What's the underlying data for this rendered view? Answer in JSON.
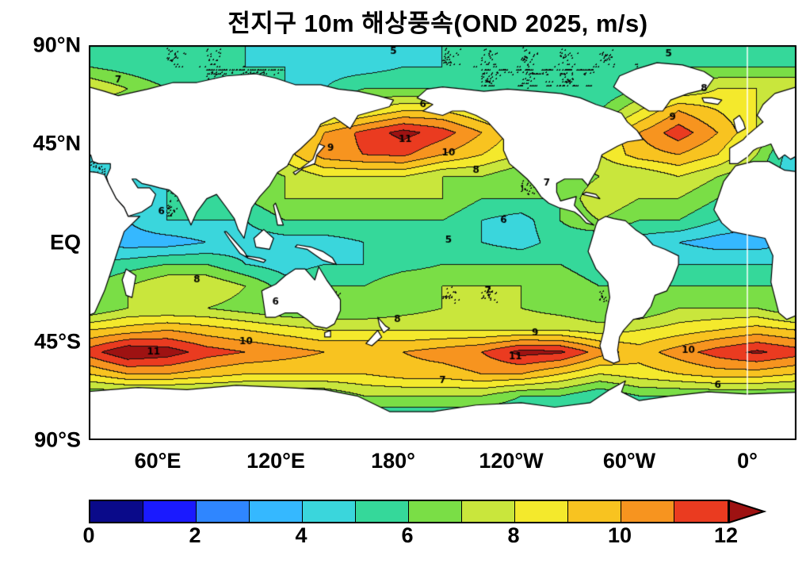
{
  "title": "전지구 10m 해상풍속(OND 2025, m/s)",
  "axes": {
    "y": [
      "90°N",
      "45°N",
      "EQ",
      "45°S",
      "90°S"
    ],
    "x": [
      "60°E",
      "120°E",
      "180°",
      "120°W",
      "60°W",
      "0°"
    ]
  },
  "colorbar": {
    "ticks": [
      "0",
      "2",
      "4",
      "6",
      "8",
      "10",
      "12"
    ],
    "min": 0,
    "max": 12,
    "unit": "m/s",
    "colors": [
      "#0a0a8a",
      "#1a1aff",
      "#2f86ff",
      "#35b8ff",
      "#3ad6dc",
      "#35d89a",
      "#7ade46",
      "#c9e63c",
      "#f4e92c",
      "#f8c320",
      "#f7941f",
      "#ea3b20",
      "#9e1212"
    ]
  },
  "chart_data": {
    "type": "heatmap",
    "title": "전지구 10m 해상풍속(OND 2025, m/s)",
    "variable": "10m ocean-surface wind speed",
    "season": "OND 2025",
    "units": "m/s",
    "projection": "equirectangular, longitude 25E to 25E (wrapped), latitude 90N to 90S",
    "xlabel_ticks": [
      "60°E",
      "120°E",
      "180°",
      "120°W",
      "60°W",
      "0°"
    ],
    "ylabel_ticks": [
      "90°N",
      "45°N",
      "EQ",
      "45°S",
      "90°S"
    ],
    "contour_levels": [
      1,
      2,
      3,
      4,
      5,
      6,
      7,
      8,
      9,
      10,
      11,
      12
    ],
    "legend_position": "bottom colorbar 0-12 m/s with overflow arrow",
    "grid": {
      "lats": [
        90,
        80,
        70,
        60,
        50,
        40,
        30,
        20,
        10,
        0,
        -10,
        -20,
        -30,
        -40,
        -50,
        -60,
        -70,
        -80,
        -90
      ],
      "lons_plot": [
        25,
        45,
        65,
        85,
        105,
        125,
        145,
        165,
        185,
        205,
        225,
        245,
        265,
        285,
        305,
        325,
        345,
        365,
        385
      ],
      "values": [
        [
          5,
          5,
          5,
          5,
          5,
          4.5,
          4.5,
          4.5,
          4.5,
          5,
          5,
          5,
          5,
          5,
          5,
          5,
          5,
          5,
          5
        ],
        [
          6,
          5.5,
          5,
          5,
          5,
          5,
          4.5,
          4.5,
          5,
          5,
          5,
          5,
          5,
          5,
          5,
          6,
          6,
          6,
          6
        ],
        [
          8,
          7,
          6,
          5,
          5,
          5,
          5,
          6,
          6,
          6,
          5,
          5,
          5,
          5,
          6,
          7,
          8,
          8,
          8
        ],
        [
          6,
          6,
          5,
          5,
          5,
          6,
          7,
          8,
          9,
          9,
          8,
          7,
          6,
          6,
          8,
          10,
          9,
          8,
          6
        ],
        [
          5,
          5,
          5,
          5.5,
          6.5,
          8,
          10,
          11.3,
          12.4,
          11.5,
          10,
          8.5,
          7,
          8,
          10,
          11.6,
          10,
          8,
          5
        ],
        [
          4,
          4,
          4.5,
          5,
          6,
          8.5,
          10.5,
          11,
          11.2,
          10,
          9,
          8,
          7,
          8,
          9.5,
          10,
          9,
          7,
          4
        ],
        [
          4,
          4,
          5,
          5,
          6,
          7,
          8,
          8,
          8,
          7,
          7,
          6,
          6,
          7,
          7,
          8,
          7,
          6,
          4
        ],
        [
          5,
          5,
          5,
          5,
          6,
          7,
          7,
          7,
          7,
          7,
          6,
          6,
          6,
          8,
          7,
          7,
          6,
          5,
          5
        ],
        [
          4,
          4,
          5,
          5,
          5,
          6,
          6,
          6,
          6,
          6,
          5,
          4.5,
          6,
          7,
          6,
          6,
          5,
          4,
          4
        ],
        [
          4,
          3.5,
          3.5,
          4,
          4.5,
          4.5,
          4.5,
          5,
          5,
          5,
          5,
          4.5,
          5.5,
          5,
          4.5,
          4,
          3.5,
          3.5,
          4
        ],
        [
          5,
          5.5,
          6,
          6,
          5,
          4.5,
          5,
          5,
          5.5,
          6,
          6,
          6,
          6,
          5,
          5,
          5,
          5,
          5,
          5
        ],
        [
          6,
          7,
          8,
          8,
          7,
          5.5,
          6,
          6,
          7,
          7,
          7,
          7,
          7,
          6,
          6,
          6,
          6,
          6,
          6
        ],
        [
          6,
          7,
          7,
          7,
          6.5,
          6,
          6,
          6,
          6.5,
          7,
          7,
          7,
          6.5,
          6,
          6,
          7,
          7,
          7,
          6
        ],
        [
          9,
          9.5,
          10,
          9.5,
          9,
          8.5,
          8,
          8,
          8,
          8,
          8,
          8,
          8,
          7.5,
          8,
          8.5,
          9,
          9.5,
          9
        ],
        [
          11.5,
          13,
          12.6,
          11.5,
          11,
          10.5,
          10,
          10,
          10,
          10.5,
          11,
          12.4,
          12.2,
          10.5,
          9.5,
          10.5,
          11.5,
          12.2,
          11.5
        ],
        [
          9,
          10,
          10,
          9.5,
          9,
          9,
          9,
          9,
          9.5,
          9.5,
          10,
          10,
          9,
          8,
          8.5,
          9,
          9.5,
          9.5,
          9
        ],
        [
          6,
          6,
          6,
          6,
          6,
          6,
          6,
          7,
          7,
          7,
          7,
          6,
          6,
          5,
          6,
          6,
          6,
          6,
          6
        ],
        [
          5,
          5,
          5,
          5,
          5,
          5,
          5,
          5,
          5,
          5,
          5,
          5,
          5,
          5,
          5,
          5,
          5,
          5,
          5
        ],
        [
          5,
          5,
          5,
          5,
          5,
          5,
          5,
          5,
          5,
          5,
          5,
          5,
          5,
          5,
          5,
          5,
          5,
          5,
          5
        ]
      ]
    },
    "contour_labels": [
      {
        "v": 5,
        "lon": 180,
        "lat": 87
      },
      {
        "v": 5,
        "lon": 320,
        "lat": 86
      },
      {
        "v": 7,
        "lon": 40,
        "lat": 74
      },
      {
        "v": 8,
        "lon": 338,
        "lat": 70
      },
      {
        "v": 6,
        "lon": 195,
        "lat": 63
      },
      {
        "v": 9,
        "lon": 322,
        "lat": 57
      },
      {
        "v": 11,
        "lon": 186,
        "lat": 47
      },
      {
        "v": 10,
        "lon": 208,
        "lat": 41
      },
      {
        "v": 9,
        "lon": 148,
        "lat": 43
      },
      {
        "v": 8,
        "lon": 222,
        "lat": 33
      },
      {
        "v": 7,
        "lon": 258,
        "lat": 27
      },
      {
        "v": 6,
        "lon": 62,
        "lat": 14
      },
      {
        "v": 5,
        "lon": 208,
        "lat": 1
      },
      {
        "v": 6,
        "lon": 236,
        "lat": 10
      },
      {
        "v": 8,
        "lon": 80,
        "lat": -17
      },
      {
        "v": 7,
        "lon": 228,
        "lat": -22
      },
      {
        "v": 6,
        "lon": 120,
        "lat": -27
      },
      {
        "v": 8,
        "lon": 182,
        "lat": -35
      },
      {
        "v": 9,
        "lon": 252,
        "lat": -41
      },
      {
        "v": 10,
        "lon": 105,
        "lat": -45
      },
      {
        "v": 11,
        "lon": 58,
        "lat": -50
      },
      {
        "v": 11,
        "lon": 242,
        "lat": -52
      },
      {
        "v": 10,
        "lon": 330,
        "lat": -49
      },
      {
        "v": 7,
        "lon": 205,
        "lat": -63
      },
      {
        "v": 6,
        "lon": 345,
        "lat": -65
      }
    ]
  }
}
